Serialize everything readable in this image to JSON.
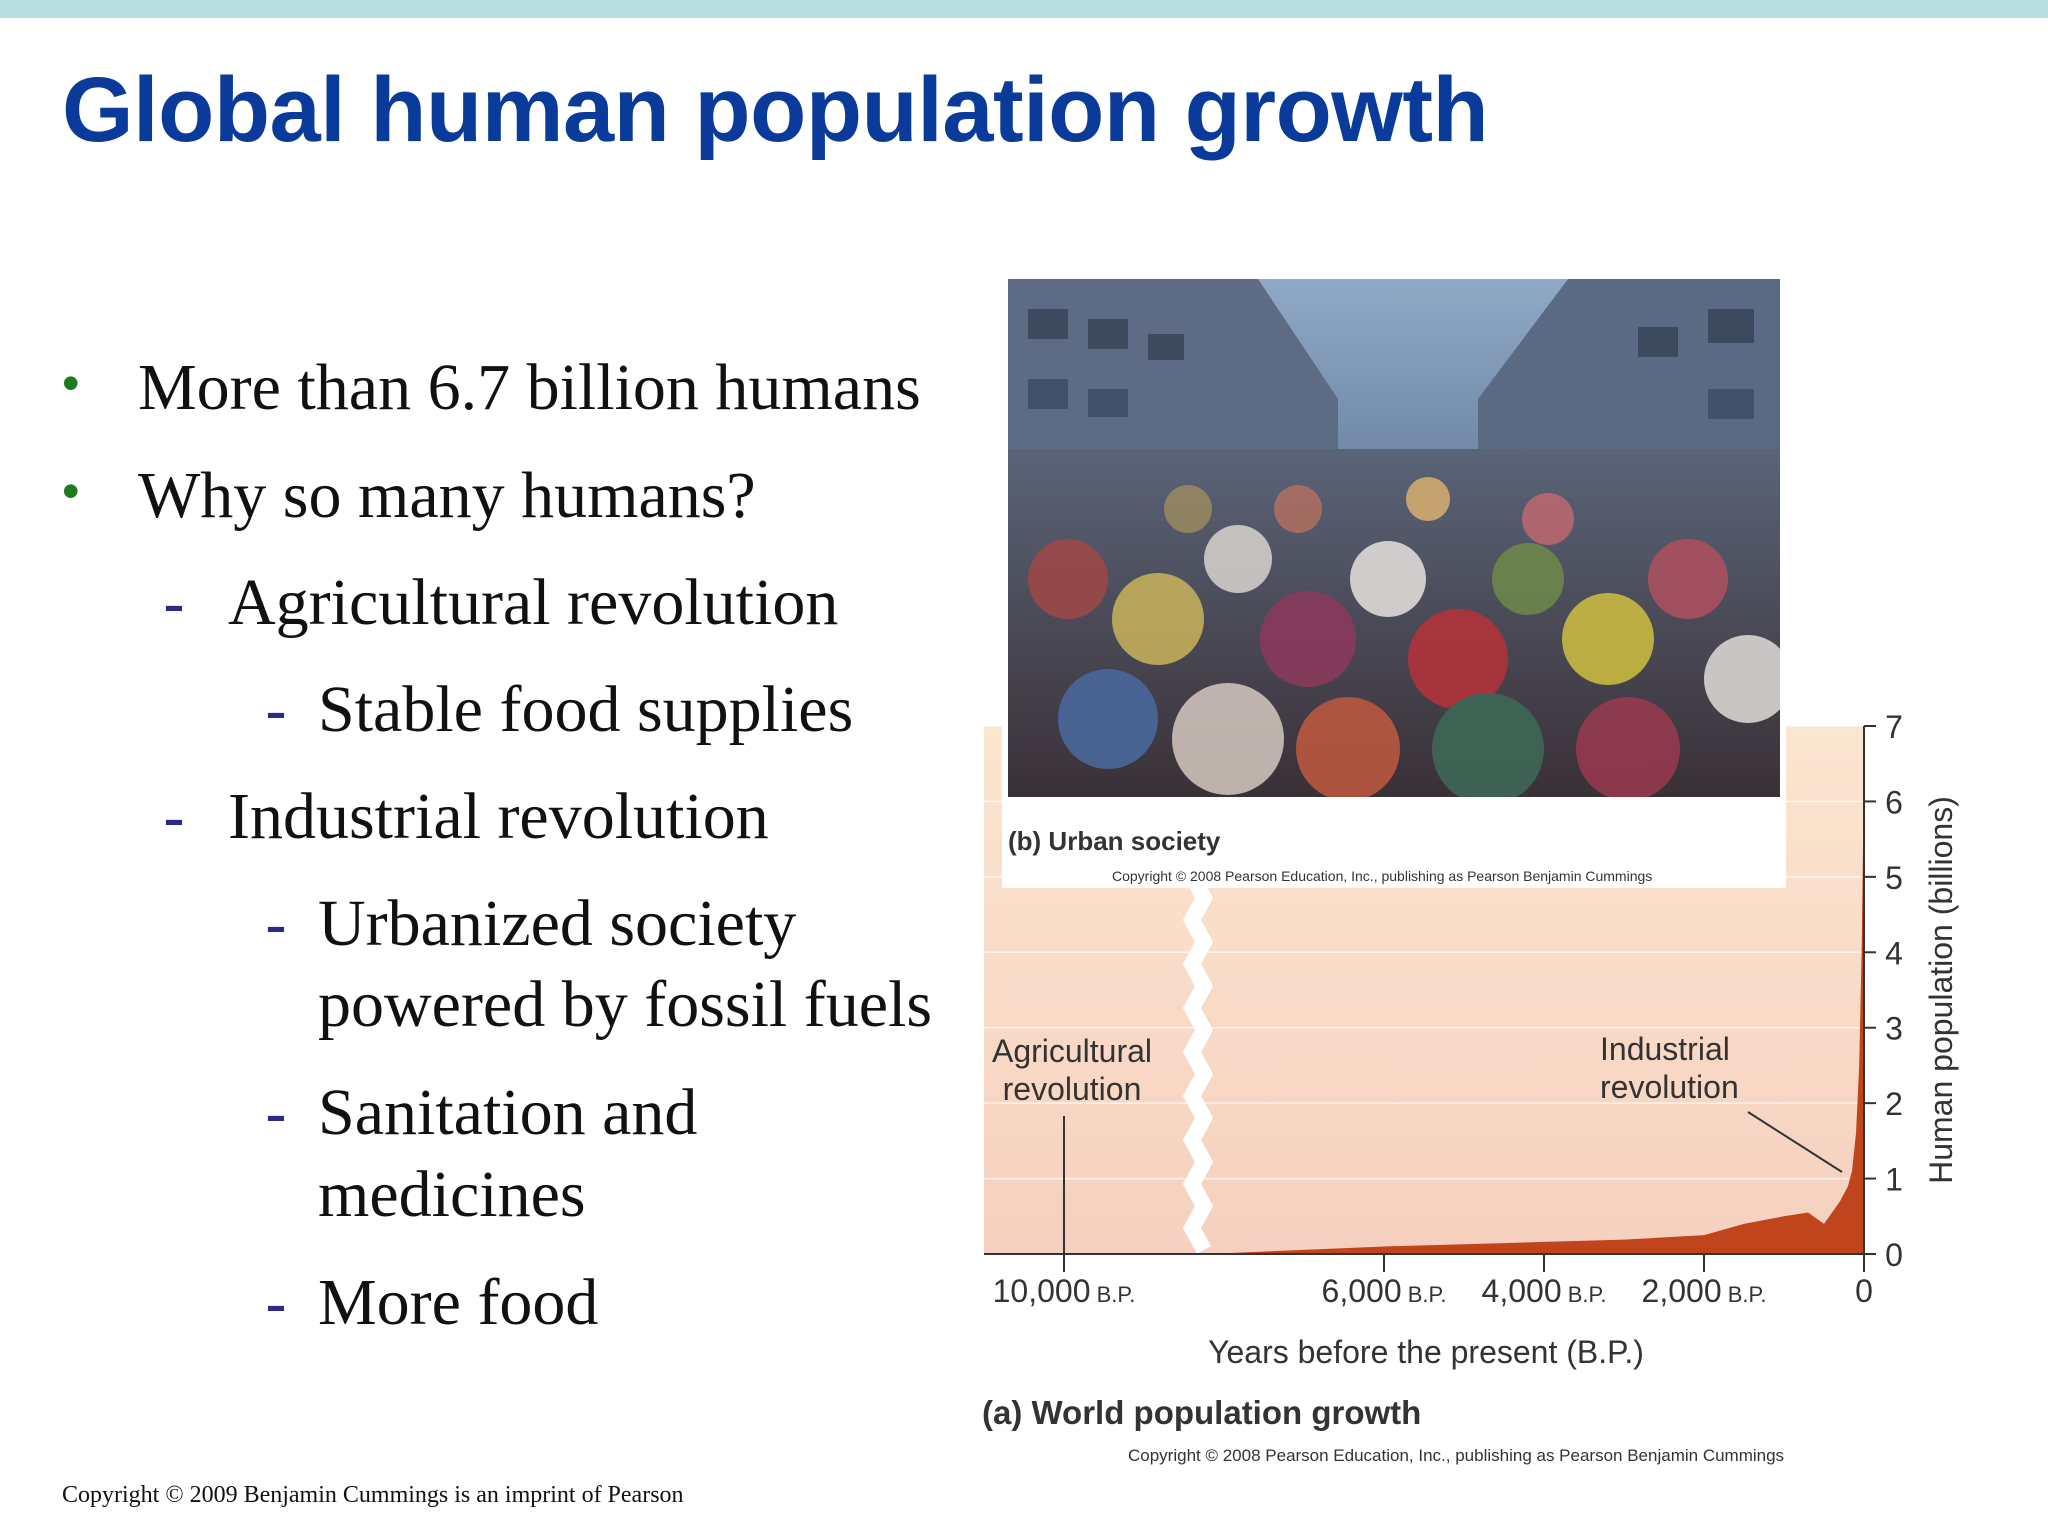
{
  "slide": {
    "title": "Global human population growth",
    "footer": "Copyright © 2009 Benjamin Cummings is an imprint of Pearson"
  },
  "bullets": [
    {
      "level": 1,
      "text": "More than 6.7 billion humans"
    },
    {
      "level": 1,
      "text": "Why so many humans?"
    },
    {
      "level": 2,
      "text": "Agricultural revolution"
    },
    {
      "level": 3,
      "text": "Stable food supplies"
    },
    {
      "level": 2,
      "text": "Industrial revolution"
    },
    {
      "level": 3,
      "text": "Urbanized society",
      "text2": "powered by fossil fuels"
    },
    {
      "level": 3,
      "text": "Sanitation and",
      "text2": "medicines"
    },
    {
      "level": 3,
      "text": "More food"
    }
  ],
  "photo": {
    "caption": "(b) Urban society",
    "copyright": "Copyright © 2008 Pearson Education, Inc., publishing as Pearson Benjamin Cummings"
  },
  "chart_caption": "(a) World population growth",
  "chart_copyright": "Copyright © 2008 Pearson Education, Inc., publishing as Pearson Benjamin Cummings",
  "chart_data": {
    "type": "area",
    "title": "",
    "xlabel": "Years before the present (B.P.)",
    "ylabel": "Human population (billions)",
    "x_ticks": [
      {
        "value": 10000,
        "label": "10,000",
        "unit": "B.P."
      },
      {
        "value": 6000,
        "label": "6,000",
        "unit": "B.P."
      },
      {
        "value": 4000,
        "label": "4,000",
        "unit": "B.P."
      },
      {
        "value": 2000,
        "label": "2,000",
        "unit": "B.P."
      },
      {
        "value": 0,
        "label": "0",
        "unit": ""
      }
    ],
    "y_ticks": [
      0,
      1,
      2,
      3,
      4,
      5,
      6,
      7
    ],
    "xlim": [
      11000,
      0
    ],
    "ylim": [
      0,
      7
    ],
    "axis_break_after": 6500,
    "series": [
      {
        "x": [
          11000,
          10000,
          8000,
          6000,
          5000,
          4000,
          3000,
          2000,
          1500,
          1000,
          700,
          500,
          300,
          200,
          150,
          100,
          60,
          30,
          10,
          0
        ],
        "y": [
          0.005,
          0.005,
          0.01,
          0.1,
          0.13,
          0.16,
          0.19,
          0.25,
          0.4,
          0.5,
          0.55,
          0.4,
          0.7,
          0.9,
          1.1,
          1.6,
          2.5,
          4.0,
          5.6,
          6.7
        ]
      }
    ],
    "annotations": [
      {
        "text": "Agricultural",
        "text2": "revolution",
        "x": 10000
      },
      {
        "text": "Industrial",
        "text2": "revolution",
        "x": 200
      }
    ],
    "colors": {
      "fill": "#c0451c",
      "background_top": "#fbe6d0",
      "background_bottom": "#f6d0bf"
    }
  }
}
